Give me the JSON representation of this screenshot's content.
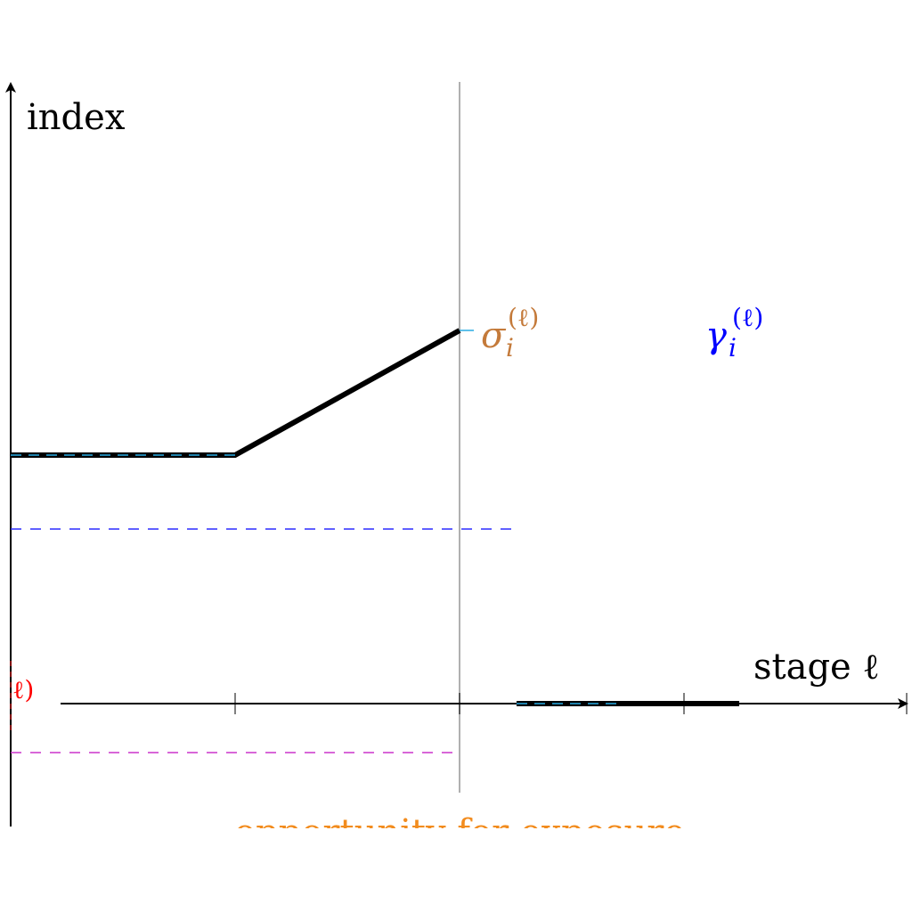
{
  "diagram": {
    "y_axis_label": "index",
    "x_axis_label": "stage ℓ",
    "sigma_label": {
      "symbol": "σ",
      "subscript": "i",
      "superscript": "(ℓ)"
    },
    "gamma_label": {
      "symbol": "γ",
      "subscript": "i",
      "superscript": "(ℓ)"
    },
    "left_cut_label": "ℓ)",
    "bottom_label": "opportunity for exposure",
    "colors": {
      "axis": "#000000",
      "index_line": "#000000",
      "cyan_dash": "#29abe2",
      "blue_dash": "#2b2bff",
      "magenta_dash": "#cc33cc",
      "vertical_marker": "#b0b0b0",
      "sigma": "#c47a3a",
      "gamma": "#0000ff",
      "left_cut": "#ff0000",
      "bottom_label": "#f28c1e"
    }
  }
}
